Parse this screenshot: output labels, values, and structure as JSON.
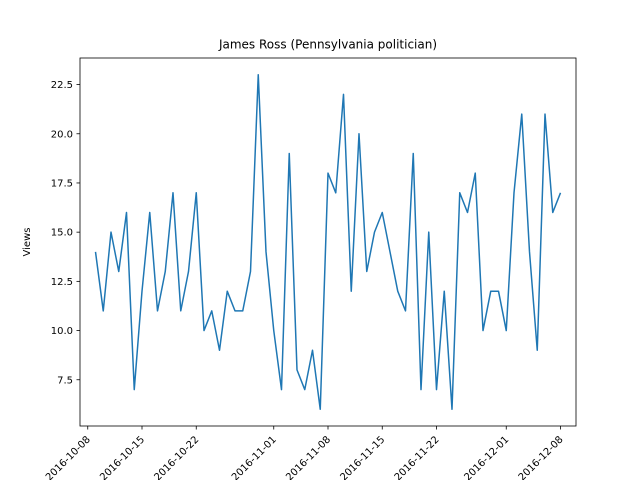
{
  "chart_data": {
    "type": "line",
    "title": "James Ross (Pennsylvania politician)",
    "xlabel": "",
    "ylabel": "Views",
    "ylim": [
      5.15,
      23.85
    ],
    "xlim": [
      "2016-10-07",
      "2016-12-10"
    ],
    "grid": false,
    "legend": "none",
    "line_color": "#1f77b4",
    "y_ticks": [
      7.5,
      10.0,
      12.5,
      15.0,
      17.5,
      20.0,
      22.5
    ],
    "y_tick_labels": [
      "7.5",
      "10.0",
      "12.5",
      "15.0",
      "17.5",
      "20.0",
      "22.5"
    ],
    "x_ticks": [
      "2016-10-08",
      "2016-10-15",
      "2016-10-22",
      "2016-11-01",
      "2016-11-08",
      "2016-11-15",
      "2016-11-22",
      "2016-12-01",
      "2016-12-08"
    ],
    "x_tick_labels": [
      "2016-10-08",
      "2016-10-15",
      "2016-10-22",
      "2016-11-01",
      "2016-11-08",
      "2016-11-15",
      "2016-11-22",
      "2016-12-01",
      "2016-12-08"
    ],
    "series": [
      {
        "x": [
          "2016-10-09",
          "2016-10-10",
          "2016-10-11",
          "2016-10-12",
          "2016-10-13",
          "2016-10-14",
          "2016-10-15",
          "2016-10-16",
          "2016-10-17",
          "2016-10-18",
          "2016-10-19",
          "2016-10-20",
          "2016-10-21",
          "2016-10-22",
          "2016-10-23",
          "2016-10-24",
          "2016-10-25",
          "2016-10-26",
          "2016-10-27",
          "2016-10-28",
          "2016-10-29",
          "2016-10-30",
          "2016-10-31",
          "2016-11-01",
          "2016-11-02",
          "2016-11-03",
          "2016-11-04",
          "2016-11-05",
          "2016-11-06",
          "2016-11-07",
          "2016-11-08",
          "2016-11-09",
          "2016-11-10",
          "2016-11-11",
          "2016-11-12",
          "2016-11-13",
          "2016-11-14",
          "2016-11-15",
          "2016-11-16",
          "2016-11-17",
          "2016-11-18",
          "2016-11-19",
          "2016-11-20",
          "2016-11-21",
          "2016-11-22",
          "2016-11-23",
          "2016-11-24",
          "2016-11-25",
          "2016-11-26",
          "2016-11-27",
          "2016-11-28",
          "2016-11-29",
          "2016-11-30",
          "2016-12-01",
          "2016-12-02",
          "2016-12-03",
          "2016-12-04",
          "2016-12-05",
          "2016-12-06",
          "2016-12-07",
          "2016-12-08"
        ],
        "values": [
          14,
          11,
          15,
          13,
          16,
          7,
          12,
          16,
          11,
          13,
          17,
          11,
          13,
          17,
          10,
          11,
          9,
          12,
          11,
          11,
          13,
          23,
          14,
          10,
          7,
          19,
          8,
          7,
          9,
          6,
          18,
          17,
          22,
          12,
          20,
          13,
          15,
          16,
          14,
          12,
          11,
          19,
          7,
          15,
          7,
          12,
          6,
          17,
          16,
          18,
          10,
          12,
          12,
          10,
          17,
          21,
          14,
          9,
          21,
          16,
          17
        ]
      }
    ]
  }
}
